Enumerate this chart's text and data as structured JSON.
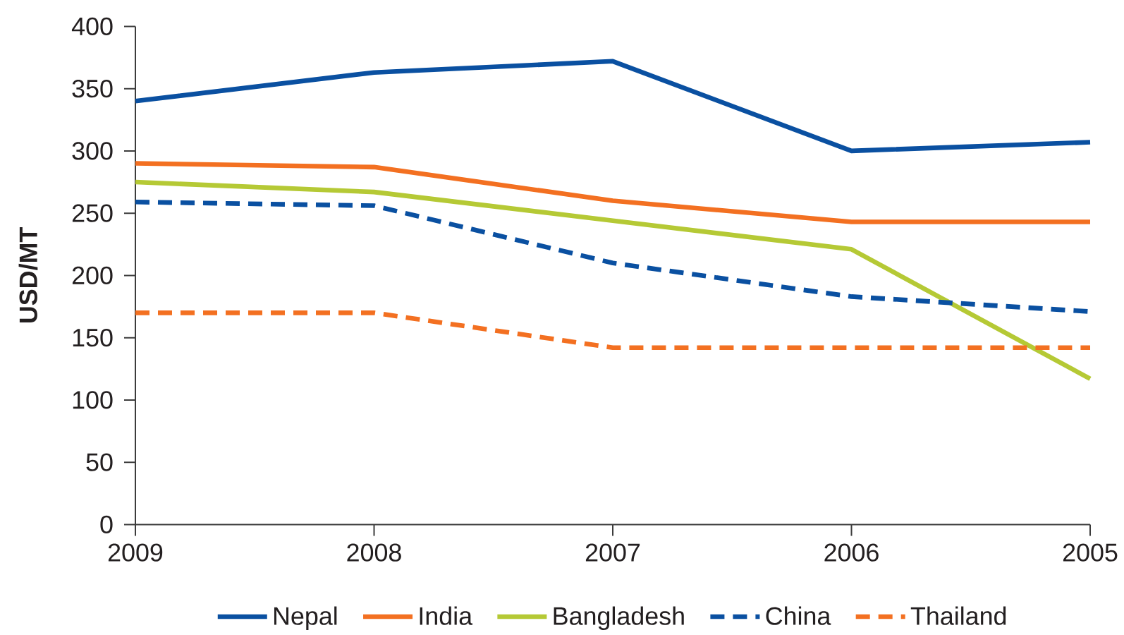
{
  "chart_data": {
    "type": "line",
    "ylabel": "USD/MT",
    "categories": [
      "2009",
      "2008",
      "2007",
      "2006",
      "2005"
    ],
    "ylim": [
      0,
      400
    ],
    "yticks": [
      0,
      50,
      100,
      150,
      200,
      250,
      300,
      350,
      400
    ],
    "legend": "bottom",
    "series": [
      {
        "name": "Nepal",
        "color": "#0a50a1",
        "line_style": "solid",
        "values": [
          340,
          363,
          372,
          300,
          307
        ]
      },
      {
        "name": "India",
        "color": "#f37021",
        "line_style": "solid",
        "values": [
          290,
          287,
          260,
          243,
          243
        ]
      },
      {
        "name": "Bangladesh",
        "color": "#b5c935",
        "line_style": "solid",
        "values": [
          275,
          267,
          244,
          221,
          117
        ]
      },
      {
        "name": "China",
        "color": "#0a50a1",
        "line_style": "dashed",
        "values": [
          259,
          256,
          210,
          183,
          171
        ]
      },
      {
        "name": "Thailand",
        "color": "#f37021",
        "line_style": "dashed",
        "values": [
          170,
          170,
          142,
          142,
          142
        ]
      }
    ]
  }
}
